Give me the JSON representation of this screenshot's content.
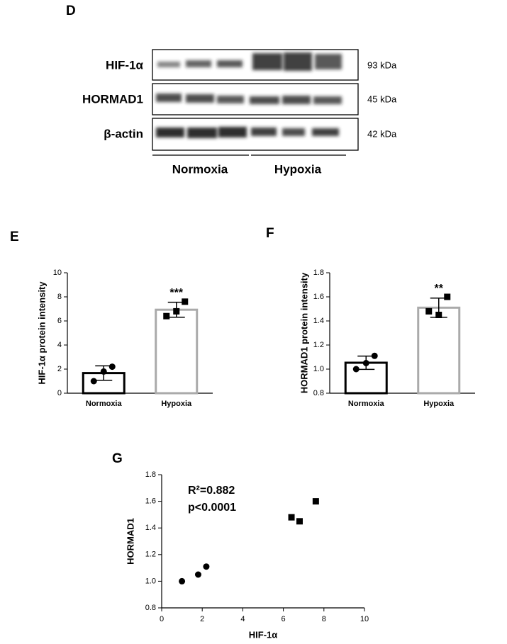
{
  "blot": {
    "panel": "D",
    "rows": [
      {
        "label": "HIF-1α",
        "size": "93 kDa"
      },
      {
        "label": "HORMAD1",
        "size": "45 kDa"
      },
      {
        "label": "β-actin",
        "size": "42 kDa"
      }
    ],
    "groups": [
      "Normoxia",
      "Hypoxia"
    ]
  },
  "chart_data": [
    {
      "type": "bar",
      "panel": "E",
      "ylabel": "HIF-1α protein intensity",
      "categories": [
        "Normoxia",
        "Hypoxia"
      ],
      "values": [
        1.67,
        6.93
      ],
      "errors": [
        0.6,
        0.62
      ],
      "points": [
        [
          1.0,
          1.8,
          2.2
        ],
        [
          6.4,
          6.8,
          7.6
        ]
      ],
      "point_markers": [
        "circle",
        "square"
      ],
      "colors": [
        "#000000",
        "#aaaaaa"
      ],
      "annotation": "***",
      "ylim": [
        0,
        10
      ],
      "yticks": [
        0,
        2,
        4,
        6,
        8,
        10
      ]
    },
    {
      "type": "bar",
      "panel": "F",
      "ylabel": "HORMAD1 protein intensity",
      "categories": [
        "Normoxia",
        "Hypoxia"
      ],
      "values": [
        1.053,
        1.51
      ],
      "errors": [
        0.055,
        0.08
      ],
      "points": [
        [
          1.0,
          1.05,
          1.11
        ],
        [
          1.48,
          1.45,
          1.6
        ]
      ],
      "point_markers": [
        "circle",
        "square"
      ],
      "colors": [
        "#000000",
        "#aaaaaa"
      ],
      "annotation": "**",
      "ylim": [
        0.8,
        1.8
      ],
      "yticks": [
        {
          "value": 0.8,
          "label": "0.8"
        },
        {
          "value": 1,
          "label": "1.0"
        },
        {
          "value": 1.2,
          "label": "1.2"
        },
        {
          "value": 1.4,
          "label": "1.4"
        },
        {
          "value": 1.6,
          "label": "1.6"
        },
        {
          "value": 1.8,
          "label": "1.8"
        }
      ]
    },
    {
      "type": "scatter",
      "panel": "G",
      "xlabel": "HIF-1α",
      "ylabel": "HORMAD1",
      "annotations": [
        "R²=0.882",
        "p<0.0001"
      ],
      "series": [
        {
          "marker": "circle",
          "color": "#000000",
          "x": [
            1.0,
            1.8,
            2.2
          ],
          "values": [
            1.0,
            1.05,
            1.11
          ]
        },
        {
          "marker": "square",
          "color": "#000000",
          "x": [
            6.4,
            6.8,
            7.6
          ],
          "values": [
            1.48,
            1.45,
            1.6
          ]
        }
      ],
      "xlim": [
        0,
        10
      ],
      "xticks": [
        0,
        2,
        4,
        6,
        8,
        10
      ],
      "ylim": [
        0.8,
        1.8
      ],
      "yticks": [
        {
          "value": 0.8,
          "label": "0.8"
        },
        {
          "value": 1,
          "label": "1.0"
        },
        {
          "value": 1.2,
          "label": "1.2"
        },
        {
          "value": 1.4,
          "label": "1.4"
        },
        {
          "value": 1.6,
          "label": "1.6"
        },
        {
          "value": 1.8,
          "label": "1.8"
        }
      ]
    }
  ]
}
